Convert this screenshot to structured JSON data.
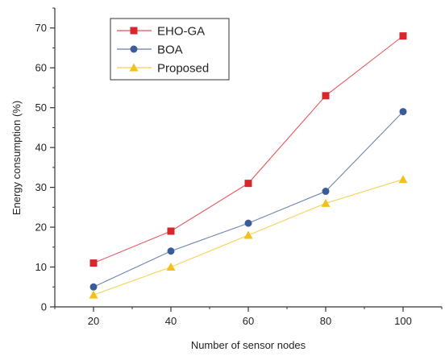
{
  "chart_data": {
    "type": "line",
    "xlabel": "Number of sensor nodes",
    "ylabel": "Energy consumption (%)",
    "x": [
      20,
      40,
      60,
      80,
      100
    ],
    "xticks": [
      "20",
      "40",
      "60",
      "80",
      "100"
    ],
    "xlim": [
      10,
      110
    ],
    "yticks": [
      "0",
      "10",
      "20",
      "30",
      "40",
      "50",
      "60",
      "70"
    ],
    "ylim": [
      0,
      75
    ],
    "grid": false,
    "legend_position": "top-left",
    "series": [
      {
        "name": "EHO-GA",
        "values": [
          11,
          19,
          31,
          53,
          68
        ],
        "color": "#d9262c",
        "marker": "square"
      },
      {
        "name": "BOA",
        "values": [
          5,
          14,
          21,
          29,
          49
        ],
        "color": "#3c5c98",
        "marker": "circle"
      },
      {
        "name": "Proposed",
        "values": [
          3,
          10,
          18,
          26,
          32
        ],
        "color": "#f2c21b",
        "marker": "triangle"
      }
    ]
  }
}
